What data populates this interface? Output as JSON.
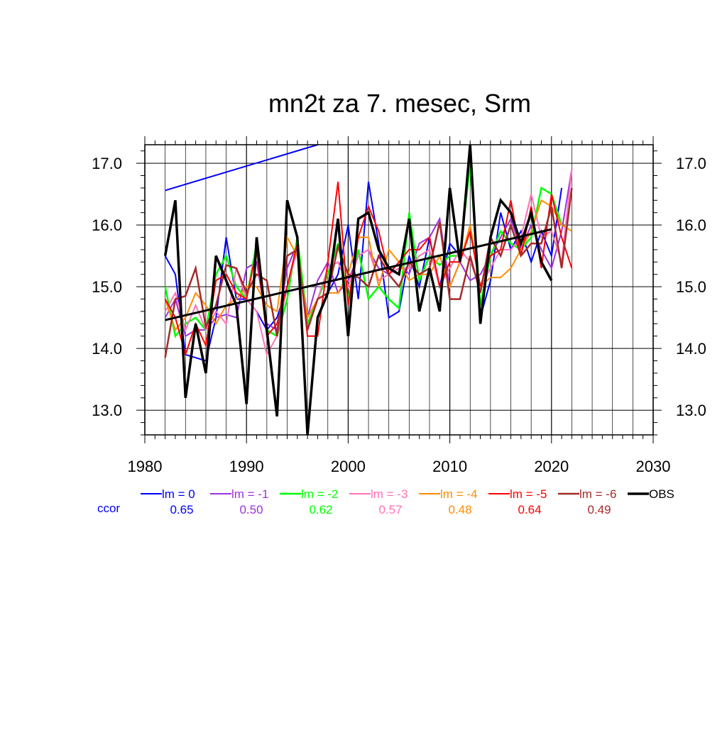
{
  "chart_data": {
    "type": "line",
    "title": "mn2t za 7. mesec, Srm",
    "xlim": [
      1980,
      2030
    ],
    "ylim": [
      12.6,
      17.3
    ],
    "x_ticks": [
      1980,
      1990,
      2000,
      2010,
      2020,
      2030
    ],
    "y_ticks": [
      13.0,
      14.0,
      15.0,
      16.0,
      17.0
    ],
    "y_tick_labels": [
      "13.0",
      "14.0",
      "15.0",
      "16.0",
      "17.0"
    ],
    "grid": true,
    "x_grid_minor": [
      1982,
      1984,
      1986,
      1988,
      1992,
      1994,
      1996,
      1998,
      2002,
      2004,
      2006,
      2008,
      2012,
      2014,
      2016,
      2018,
      2022,
      2024,
      2026,
      2028
    ],
    "ccor_label": "ccor",
    "legend_position": "bottom",
    "series": [
      {
        "name": "lm = 0",
        "color": "#0000ff",
        "ccor": "0.65",
        "width": 2,
        "x": [
          1982,
          1983,
          1984,
          1985,
          1986,
          1987,
          1988,
          1989,
          1990,
          1991,
          1992,
          1993,
          1994,
          1995,
          1996,
          1997,
          1998,
          1999,
          2000,
          2001,
          2002,
          2003,
          2004,
          2005,
          2006,
          2007,
          2008,
          2009,
          2010,
          2011,
          2012,
          2013,
          2014,
          2015,
          2016,
          2017,
          2018,
          2019,
          2020,
          2021
        ],
        "values": [
          15.5,
          15.2,
          13.9,
          13.85,
          13.8,
          14.5,
          15.8,
          14.8,
          14.8,
          14.6,
          14.3,
          14.5,
          15.0,
          15.7,
          14.3,
          14.8,
          14.9,
          15.2,
          16.0,
          14.8,
          16.7,
          15.7,
          14.5,
          14.6,
          15.5,
          15.0,
          15.8,
          15.0,
          15.7,
          15.5,
          17.1,
          14.5,
          15.1,
          16.2,
          15.6,
          15.9,
          15.4,
          15.9,
          15.5,
          16.6
        ]
      },
      {
        "name": "lm = -1",
        "color": "#9f2fe0",
        "ccor": "0.50",
        "width": 2,
        "x": [
          1982,
          1983,
          1984,
          1985,
          1986,
          1987,
          1988,
          1989,
          1990,
          1991,
          1992,
          1993,
          1994,
          1995,
          1996,
          1997,
          1998,
          1999,
          2000,
          2001,
          2002,
          2003,
          2004,
          2005,
          2006,
          2007,
          2008,
          2009,
          2010,
          2011,
          2012,
          2013,
          2014,
          2015,
          2016,
          2017,
          2018,
          2019,
          2020,
          2021,
          2022
        ],
        "values": [
          14.5,
          14.8,
          14.2,
          14.3,
          14.3,
          14.5,
          14.55,
          14.5,
          15.3,
          15.4,
          14.4,
          14.3,
          15.3,
          15.7,
          14.5,
          15.1,
          15.4,
          14.9,
          15.1,
          15.5,
          15.6,
          15.3,
          15.2,
          15.4,
          15.2,
          15.7,
          15.8,
          16.1,
          15.0,
          15.4,
          15.1,
          15.2,
          15.5,
          15.8,
          16.1,
          15.6,
          16.0,
          15.6,
          15.3,
          15.9,
          16.9
        ]
      },
      {
        "name": "lm = -2",
        "color": "#00ff00",
        "ccor": "0.62",
        "width": 2.5,
        "x": [
          1982,
          1983,
          1984,
          1985,
          1986,
          1987,
          1988,
          1989,
          1990,
          1991,
          1992,
          1993,
          1994,
          1995,
          1996,
          1997,
          1998,
          1999,
          2000,
          2001,
          2002,
          2003,
          2004,
          2005,
          2006,
          2007,
          2008,
          2009,
          2010,
          2011,
          2012,
          2013,
          2014,
          2015,
          2016,
          2017,
          2018,
          2019,
          2020,
          2021
        ],
        "values": [
          15.0,
          14.2,
          14.4,
          14.5,
          14.3,
          15.2,
          15.5,
          15.0,
          14.8,
          15.7,
          14.3,
          14.2,
          14.8,
          15.8,
          14.4,
          14.8,
          15.2,
          15.7,
          14.8,
          15.6,
          14.8,
          15.0,
          14.8,
          14.65,
          16.2,
          15.1,
          15.5,
          15.35,
          15.5,
          15.5,
          17.0,
          14.7,
          15.5,
          15.9,
          15.7,
          15.6,
          15.8,
          16.6,
          16.5,
          16.0
        ]
      },
      {
        "name": "lm = -3",
        "color": "#ff72b6",
        "ccor": "0.57",
        "width": 2,
        "x": [
          1982,
          1983,
          1984,
          1985,
          1986,
          1987,
          1988,
          1989,
          1990,
          1991,
          1992,
          1993,
          1994,
          1995,
          1996,
          1997,
          1998,
          1999,
          2000,
          2001,
          2002,
          2003,
          2004,
          2005,
          2006,
          2007,
          2008,
          2009,
          2010,
          2011,
          2012,
          2013,
          2014,
          2015,
          2016,
          2017,
          2018,
          2019,
          2020,
          2021,
          2022
        ],
        "values": [
          14.6,
          14.9,
          14.3,
          14.7,
          14.3,
          14.6,
          14.4,
          15.3,
          14.8,
          14.6,
          13.9,
          14.2,
          15.0,
          15.6,
          14.3,
          14.8,
          15.3,
          15.4,
          15.0,
          15.5,
          15.6,
          15.1,
          15.2,
          15.3,
          15.3,
          15.5,
          15.6,
          15.0,
          15.3,
          15.6,
          15.4,
          15.0,
          15.3,
          15.6,
          15.6,
          15.8,
          16.5,
          15.8,
          15.9,
          15.4,
          16.9
        ]
      },
      {
        "name": "lm = -4",
        "color": "#ff8c00",
        "ccor": "0.48",
        "width": 2,
        "x": [
          1982,
          1983,
          1984,
          1985,
          1986,
          1987,
          1988,
          1989,
          1990,
          1991,
          1992,
          1993,
          1994,
          1995,
          1996,
          1997,
          1998,
          1999,
          2000,
          2001,
          2002,
          2003,
          2004,
          2005,
          2006,
          2007,
          2008,
          2009,
          2010,
          2011,
          2012,
          2013,
          2014,
          2015,
          2016,
          2017,
          2018,
          2019,
          2020,
          2021,
          2022
        ],
        "values": [
          14.8,
          14.3,
          14.5,
          14.9,
          14.7,
          14.4,
          14.7,
          14.8,
          15.0,
          15.0,
          14.7,
          14.6,
          15.8,
          15.5,
          14.5,
          14.8,
          14.9,
          14.9,
          15.2,
          15.8,
          15.8,
          15.0,
          15.6,
          15.4,
          15.1,
          15.2,
          15.2,
          15.5,
          15.0,
          15.4,
          16.0,
          15.0,
          15.15,
          15.15,
          15.3,
          15.6,
          15.9,
          16.4,
          16.3,
          16.0,
          15.9
        ]
      },
      {
        "name": "lm = -5",
        "color": "#ff0000",
        "ccor": "0.64",
        "width": 2,
        "x": [
          1982,
          1983,
          1984,
          1985,
          1986,
          1987,
          1988,
          1989,
          1990,
          1991,
          1992,
          1993,
          1994,
          1995,
          1996,
          1997,
          1998,
          1999,
          2000,
          2001,
          2002,
          2003,
          2004,
          2005,
          2006,
          2007,
          2008,
          2009,
          2010,
          2011,
          2012,
          2013,
          2014,
          2015,
          2016,
          2017,
          2018,
          2019,
          2020,
          2021,
          2022
        ],
        "values": [
          14.8,
          14.5,
          13.9,
          14.4,
          14.05,
          15.1,
          15.2,
          14.9,
          14.8,
          15.6,
          14.2,
          14.4,
          15.0,
          15.7,
          14.2,
          14.2,
          15.4,
          16.7,
          14.7,
          15.8,
          16.3,
          15.9,
          15.2,
          15.4,
          15.6,
          15.6,
          15.8,
          15.0,
          15.4,
          15.4,
          15.9,
          15.0,
          15.5,
          15.6,
          16.4,
          15.5,
          16.3,
          15.3,
          16.5,
          15.8,
          15.3
        ]
      },
      {
        "name": "lm = -6",
        "color": "#a52a2a",
        "ccor": "0.49",
        "width": 2.5,
        "x": [
          1982,
          1983,
          1984,
          1985,
          1986,
          1987,
          1988,
          1989,
          1990,
          1991,
          1992,
          1993,
          1994,
          1995,
          1996,
          1997,
          1998,
          1999,
          2000,
          2001,
          2002,
          2003,
          2004,
          2005,
          2006,
          2007,
          2008,
          2009,
          2010,
          2011,
          2012,
          2013,
          2014,
          2015,
          2016,
          2017,
          2018,
          2019,
          2020,
          2021,
          2022
        ],
        "values": [
          13.85,
          14.8,
          14.85,
          15.3,
          14.35,
          14.7,
          15.35,
          15.3,
          14.9,
          15.2,
          15.1,
          14.2,
          15.5,
          15.6,
          14.3,
          14.8,
          14.9,
          15.65,
          15.2,
          15.15,
          15.0,
          15.5,
          15.2,
          15.0,
          15.4,
          15.2,
          15.3,
          16.05,
          14.8,
          14.8,
          15.5,
          14.9,
          15.8,
          15.5,
          16.0,
          15.5,
          15.7,
          15.7,
          16.3,
          15.3,
          16.6
        ]
      },
      {
        "name": "OBS",
        "color": "#000000",
        "width": 3.5,
        "x": [
          1982,
          1983,
          1984,
          1985,
          1986,
          1987,
          1988,
          1989,
          1990,
          1991,
          1992,
          1993,
          1994,
          1995,
          1996,
          1997,
          1998,
          1999,
          2000,
          2001,
          2002,
          2003,
          2004,
          2005,
          2006,
          2007,
          2008,
          2009,
          2010,
          2011,
          2012,
          2013,
          2014,
          2015,
          2016,
          2017,
          2018,
          2019,
          2020
        ],
        "values": [
          15.5,
          16.4,
          13.2,
          14.4,
          13.6,
          15.5,
          15.1,
          14.7,
          13.1,
          15.8,
          14.3,
          12.9,
          16.4,
          15.8,
          12.6,
          14.5,
          14.9,
          16.1,
          14.2,
          16.1,
          16.2,
          15.6,
          15.3,
          15.2,
          16.1,
          14.6,
          15.3,
          14.6,
          16.6,
          15.4,
          17.3,
          14.4,
          15.8,
          16.4,
          16.2,
          15.7,
          16.2,
          15.4,
          15.1
        ]
      }
    ],
    "trend_lines": [
      {
        "color": "#0000ff",
        "width": 2,
        "x": [
          1982,
          1997
        ],
        "values": [
          16.56,
          17.3
        ]
      },
      {
        "color": "#000000",
        "width": 3,
        "x": [
          1982,
          2020
        ],
        "values": [
          14.46,
          15.93
        ]
      }
    ]
  }
}
